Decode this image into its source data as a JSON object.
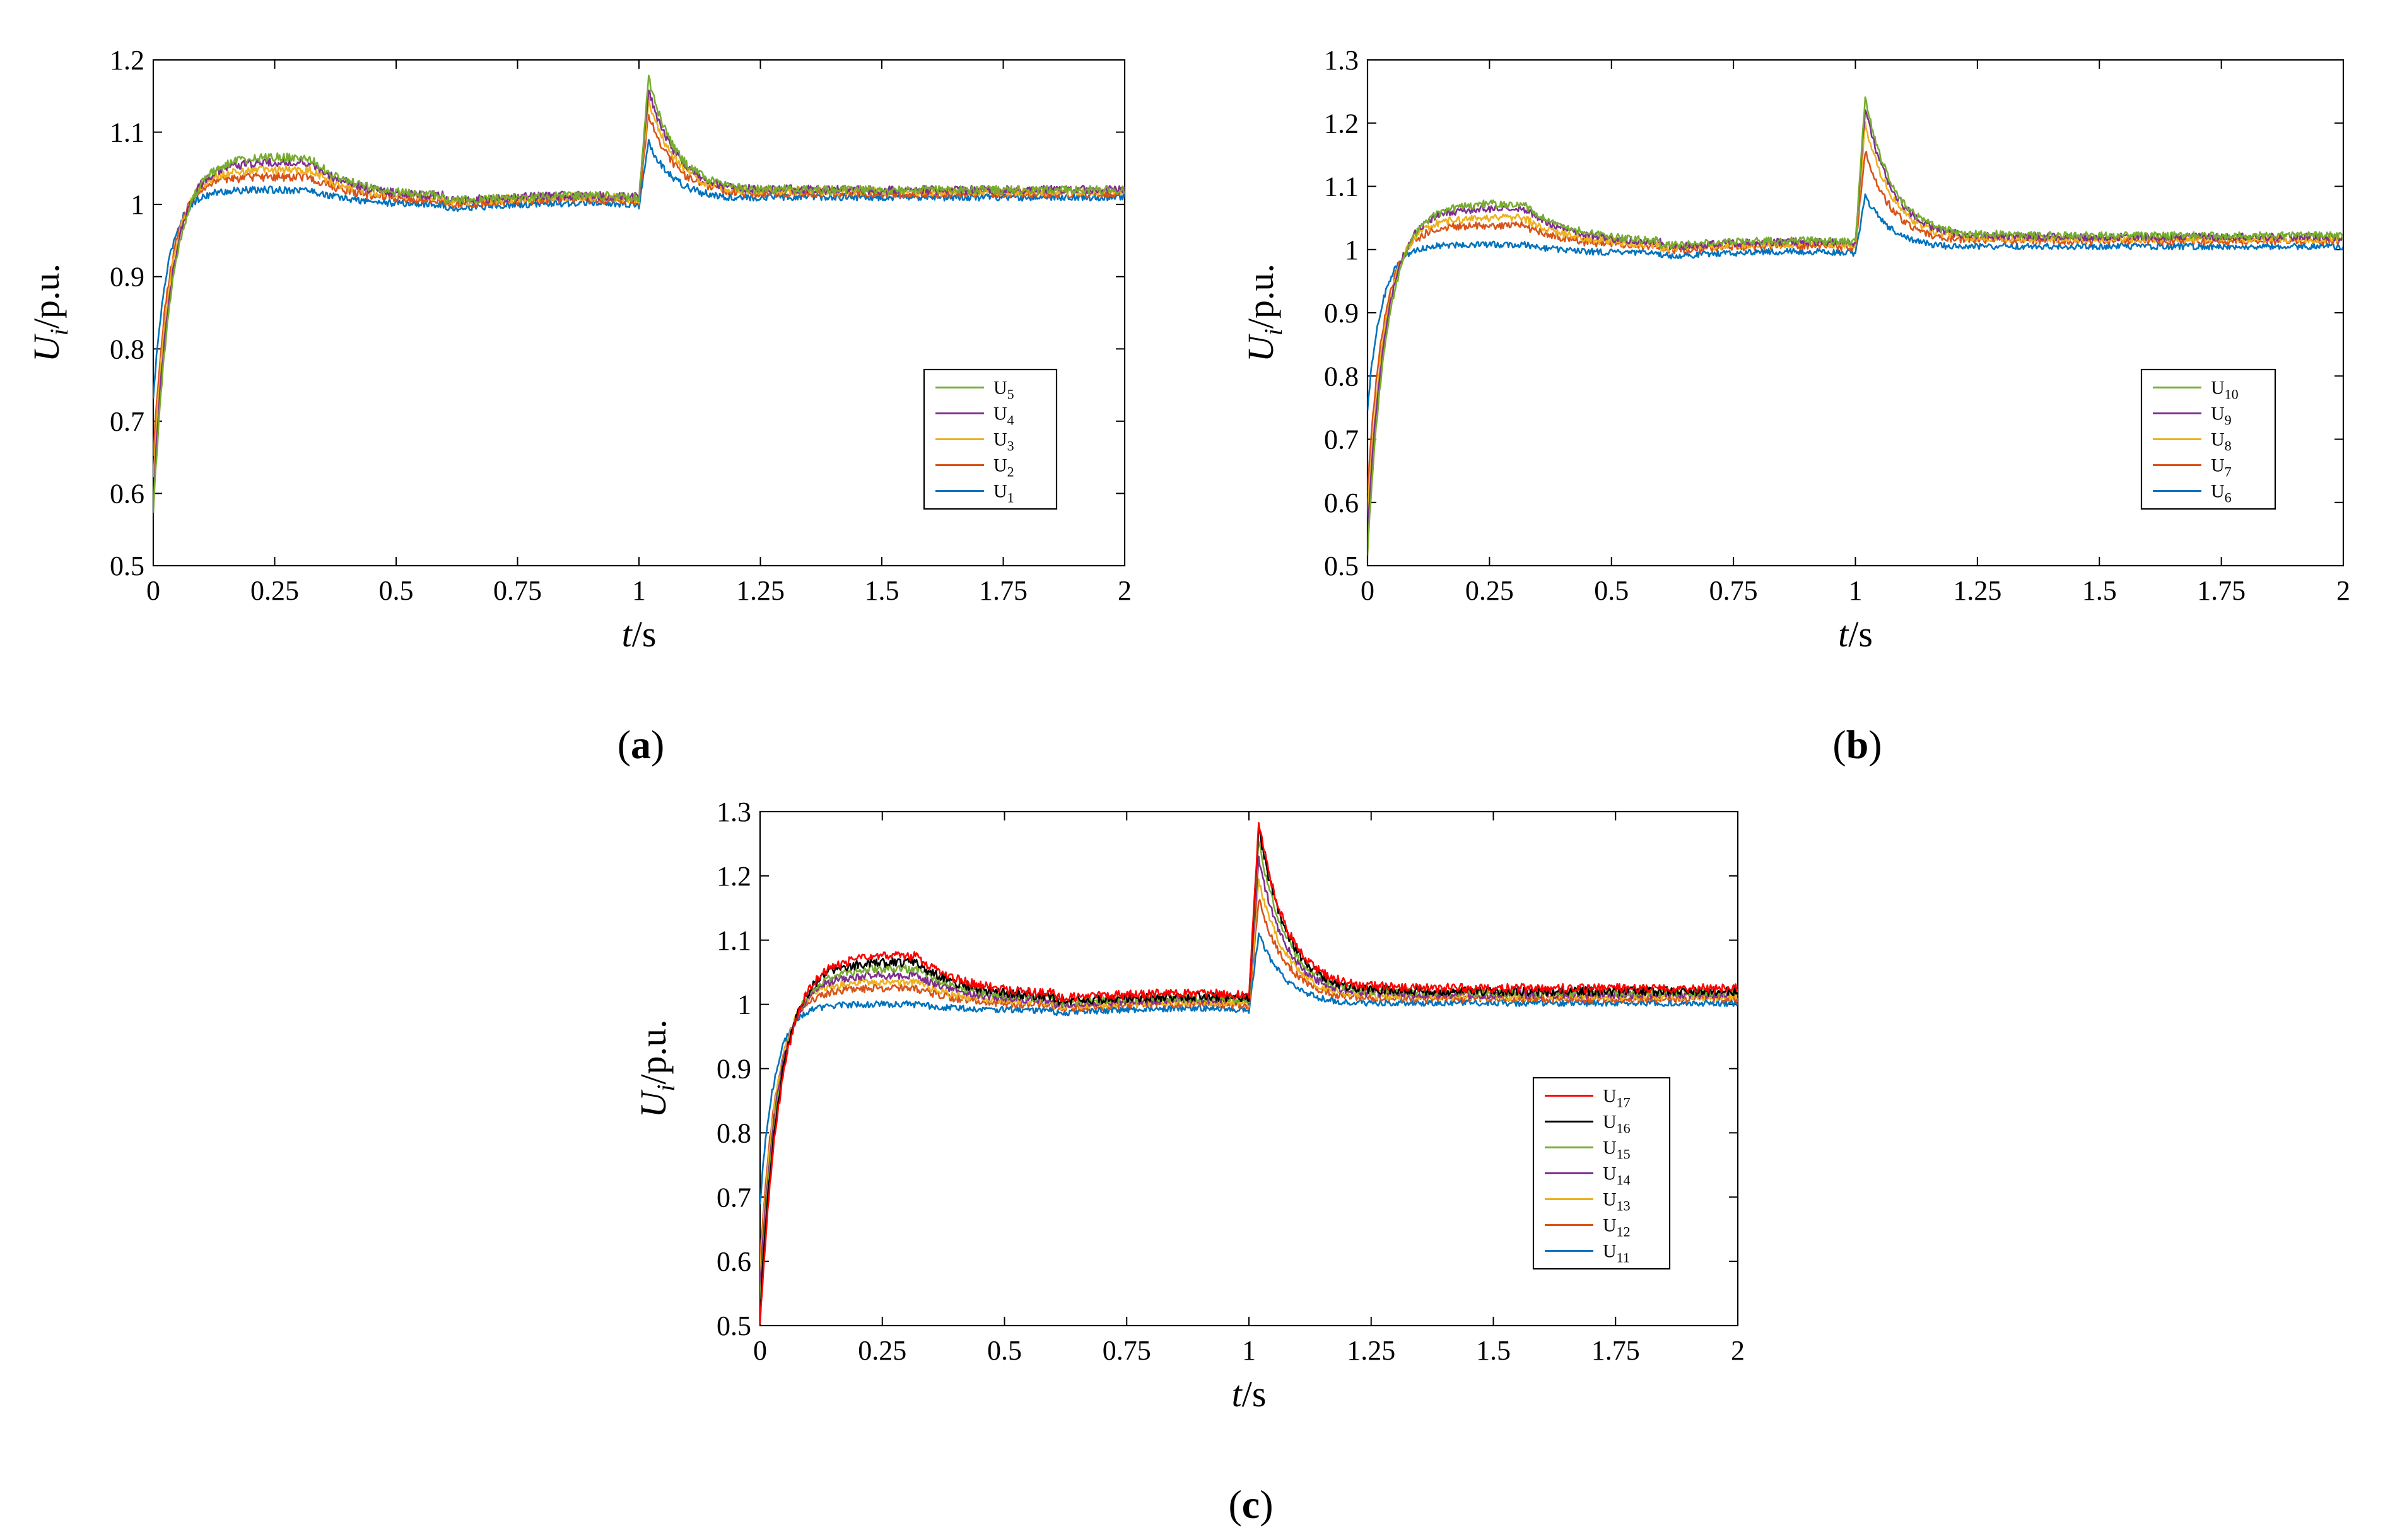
{
  "chart_data": [
    {
      "type": "line",
      "caption": "a",
      "xlabel": {
        "italic": "t",
        "rest": "/s"
      },
      "ylabel": {
        "italic": "U",
        "sub": "i",
        "rest": "/p.u."
      },
      "xlim": [
        0,
        2
      ],
      "ylim": [
        0.5,
        1.2
      ],
      "xticks": [
        0,
        0.25,
        0.5,
        0.75,
        1,
        1.25,
        1.5,
        1.75,
        2
      ],
      "xtick_labels": [
        "0",
        "0.25",
        "0.5",
        "0.75",
        "1",
        "1.25",
        "1.5",
        "1.75",
        "2"
      ],
      "yticks": [
        0.5,
        0.6,
        0.7,
        0.8,
        0.9,
        1.0,
        1.1,
        1.2
      ],
      "ytick_labels": [
        "0.5",
        "0.6",
        "0.7",
        "0.8",
        "0.9",
        "1",
        "1.1",
        "1.2"
      ],
      "legend_position": "lower-right",
      "series": [
        {
          "name": "U",
          "sub": "5",
          "color": "#77AC30",
          "start": 0.57,
          "plateau": 1.065,
          "peak": 1.175,
          "settle": 1.02,
          "rise_tau": 0.038,
          "noise": 0.006
        },
        {
          "name": "U",
          "sub": "4",
          "color": "#7E2F8E",
          "start": 0.59,
          "plateau": 1.058,
          "peak": 1.16,
          "settle": 1.02,
          "rise_tau": 0.036,
          "noise": 0.006
        },
        {
          "name": "U",
          "sub": "3",
          "color": "#EDB120",
          "start": 0.62,
          "plateau": 1.048,
          "peak": 1.145,
          "settle": 1.018,
          "rise_tau": 0.034,
          "noise": 0.006
        },
        {
          "name": "U",
          "sub": "2",
          "color": "#D95319",
          "start": 0.65,
          "plateau": 1.038,
          "peak": 1.125,
          "settle": 1.015,
          "rise_tau": 0.032,
          "noise": 0.006
        },
        {
          "name": "U",
          "sub": "1",
          "color": "#0072BD",
          "start": 0.73,
          "plateau": 1.02,
          "peak": 1.085,
          "settle": 1.01,
          "rise_tau": 0.03,
          "noise": 0.005
        }
      ]
    },
    {
      "type": "line",
      "caption": "b",
      "xlabel": {
        "italic": "t",
        "rest": "/s"
      },
      "ylabel": {
        "italic": "U",
        "sub": "i",
        "rest": "/p.u."
      },
      "xlim": [
        0,
        2
      ],
      "ylim": [
        0.5,
        1.3
      ],
      "xticks": [
        0,
        0.25,
        0.5,
        0.75,
        1,
        1.25,
        1.5,
        1.75,
        2
      ],
      "xtick_labels": [
        "0",
        "0.25",
        "0.5",
        "0.75",
        "1",
        "1.25",
        "1.5",
        "1.75",
        "2"
      ],
      "yticks": [
        0.5,
        0.6,
        0.7,
        0.8,
        0.9,
        1.0,
        1.1,
        1.2,
        1.3
      ],
      "ytick_labels": [
        "0.5",
        "0.6",
        "0.7",
        "0.8",
        "0.9",
        "1",
        "1.1",
        "1.2",
        "1.3"
      ],
      "legend_position": "lower-right",
      "series": [
        {
          "name": "U",
          "sub": "10",
          "color": "#77AC30",
          "start": 0.52,
          "plateau": 1.072,
          "peak": 1.24,
          "settle": 1.022,
          "rise_tau": 0.04,
          "noise": 0.006
        },
        {
          "name": "U",
          "sub": "9",
          "color": "#7E2F8E",
          "start": 0.55,
          "plateau": 1.065,
          "peak": 1.225,
          "settle": 1.02,
          "rise_tau": 0.038,
          "noise": 0.006
        },
        {
          "name": "U",
          "sub": "8",
          "color": "#EDB120",
          "start": 0.58,
          "plateau": 1.05,
          "peak": 1.2,
          "settle": 1.017,
          "rise_tau": 0.036,
          "noise": 0.006
        },
        {
          "name": "U",
          "sub": "7",
          "color": "#D95319",
          "start": 0.62,
          "plateau": 1.038,
          "peak": 1.155,
          "settle": 1.014,
          "rise_tau": 0.034,
          "noise": 0.006
        },
        {
          "name": "U",
          "sub": "6",
          "color": "#0072BD",
          "start": 0.75,
          "plateau": 1.008,
          "peak": 1.085,
          "settle": 1.005,
          "rise_tau": 0.03,
          "noise": 0.005
        }
      ]
    },
    {
      "type": "line",
      "caption": "c",
      "xlabel": {
        "italic": "t",
        "rest": "/s"
      },
      "ylabel": {
        "italic": "U",
        "sub": "i",
        "rest": "/p.u."
      },
      "xlim": [
        0,
        2
      ],
      "ylim": [
        0.5,
        1.3
      ],
      "xticks": [
        0,
        0.25,
        0.5,
        0.75,
        1,
        1.25,
        1.5,
        1.75,
        2
      ],
      "xtick_labels": [
        "0",
        "0.25",
        "0.5",
        "0.75",
        "1",
        "1.25",
        "1.5",
        "1.75",
        "2"
      ],
      "yticks": [
        0.5,
        0.6,
        0.7,
        0.8,
        0.9,
        1.0,
        1.1,
        1.2,
        1.3
      ],
      "ytick_labels": [
        "0.5",
        "0.6",
        "0.7",
        "0.8",
        "0.9",
        "1",
        "1.1",
        "1.2",
        "1.3"
      ],
      "legend_position": "lower-right",
      "series": [
        {
          "name": "U",
          "sub": "17",
          "color": "#FF0000",
          "start": 0.5,
          "plateau": 1.075,
          "peak": 1.285,
          "settle": 1.025,
          "rise_tau": 0.042,
          "noise": 0.007
        },
        {
          "name": "U",
          "sub": "16",
          "color": "#000000",
          "start": 0.52,
          "plateau": 1.065,
          "peak": 1.275,
          "settle": 1.02,
          "rise_tau": 0.04,
          "noise": 0.007
        },
        {
          "name": "U",
          "sub": "15",
          "color": "#77AC30",
          "start": 0.54,
          "plateau": 1.055,
          "peak": 1.255,
          "settle": 1.018,
          "rise_tau": 0.039,
          "noise": 0.006
        },
        {
          "name": "U",
          "sub": "14",
          "color": "#7E2F8E",
          "start": 0.56,
          "plateau": 1.045,
          "peak": 1.225,
          "settle": 1.015,
          "rise_tau": 0.037,
          "noise": 0.006
        },
        {
          "name": "U",
          "sub": "13",
          "color": "#EDB120",
          "start": 0.58,
          "plateau": 1.035,
          "peak": 1.195,
          "settle": 1.012,
          "rise_tau": 0.035,
          "noise": 0.006
        },
        {
          "name": "U",
          "sub": "12",
          "color": "#D95319",
          "start": 0.6,
          "plateau": 1.025,
          "peak": 1.165,
          "settle": 1.009,
          "rise_tau": 0.034,
          "noise": 0.006
        },
        {
          "name": "U",
          "sub": "11",
          "color": "#0072BD",
          "start": 0.69,
          "plateau": 1.0,
          "peak": 1.11,
          "settle": 1.002,
          "rise_tau": 0.03,
          "noise": 0.005
        }
      ]
    }
  ]
}
